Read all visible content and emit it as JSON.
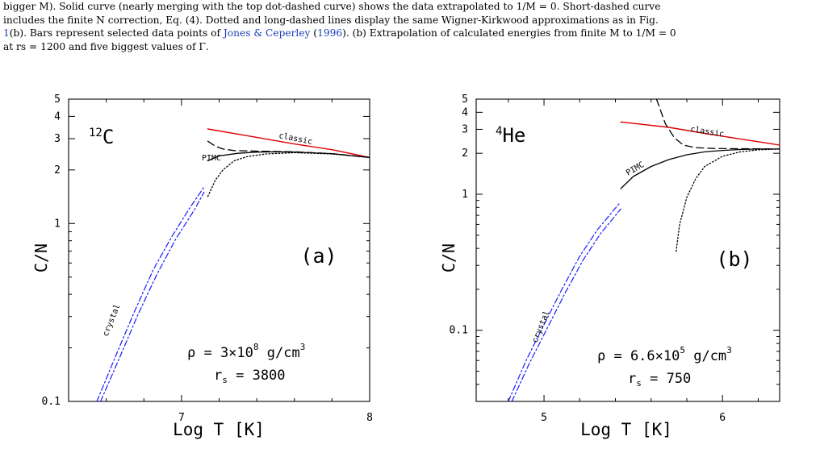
{
  "caption": {
    "line1": "bigger M). Solid curve (nearly merging with the top dot-dashed curve) shows the data extrapolated to 1/M = 0. Short-dashed curve",
    "line2": "includes the finite N correction, Eq. (4). Dotted and long-dashed lines display the same Wigner-Kirkwood approximations as in Fig.",
    "line3_ref": "1",
    "line3_mid": "(b). Bars represent selected data points of ",
    "line3_cite": "Jones & Ceperley",
    "line3_cite_year": "1996",
    "line3_end": ". (b) Extrapolation of calculated energies from finite M to 1/M = 0",
    "line4": "at rs = 1200 and five biggest values of Γ."
  },
  "colors": {
    "classic": "#e00000",
    "crystal": "#1a1aff",
    "black": "#000000"
  },
  "chart_data": [
    {
      "type": "line",
      "panel_label": "(a)",
      "element": "12C",
      "xlabel": "Log T [K]",
      "ylabel": "C/N",
      "xlim": [
        6.4,
        8.0
      ],
      "ylim": [
        0.1,
        5
      ],
      "yscale": "log",
      "xticklabels": [
        "7",
        "8"
      ],
      "yticklabels": [
        "0.1",
        "1",
        "2",
        "3",
        "4",
        "5"
      ],
      "annotations": {
        "density": "ρ = 3×10",
        "density_exp": "8",
        "density_unit": " g/cm",
        "density_unit_exp": "3",
        "rs": "r",
        "rs_sub": "s",
        "rs_value": " = 3800"
      },
      "curve_labels": {
        "classic": "classic",
        "pimc": "PIMC",
        "crystal": "crystal"
      },
      "series": [
        {
          "name": "classic",
          "style": "solid-red",
          "x": [
            7.14,
            7.4,
            7.6,
            7.8,
            8.0
          ],
          "y": [
            3.4,
            3.05,
            2.8,
            2.6,
            2.35
          ]
        },
        {
          "name": "PIMC",
          "style": "solid-black",
          "x": [
            7.14,
            7.2,
            7.3,
            7.4,
            7.5,
            7.6,
            7.8,
            8.0
          ],
          "y": [
            2.25,
            2.4,
            2.48,
            2.52,
            2.53,
            2.52,
            2.47,
            2.35
          ]
        },
        {
          "name": "",
          "style": "long-dashed-black",
          "x": [
            7.14,
            7.18,
            7.22,
            7.28,
            7.4,
            7.6,
            7.8,
            8.0
          ],
          "y": [
            2.9,
            2.72,
            2.62,
            2.57,
            2.55,
            2.53,
            2.47,
            2.35
          ]
        },
        {
          "name": "",
          "style": "dotted-black",
          "x": [
            7.14,
            7.18,
            7.22,
            7.28,
            7.35,
            7.45,
            7.6,
            7.8,
            8.0
          ],
          "y": [
            1.42,
            1.75,
            2.0,
            2.25,
            2.38,
            2.46,
            2.5,
            2.46,
            2.35
          ]
        },
        {
          "name": "crystal",
          "style": "dash-dot-blue",
          "x": [
            6.55,
            6.65,
            6.75,
            6.85,
            6.95,
            7.05,
            7.12
          ],
          "y": [
            0.1,
            0.18,
            0.32,
            0.55,
            0.85,
            1.25,
            1.6
          ]
        },
        {
          "name": "",
          "style": "dash-dot-blue",
          "x": [
            6.57,
            6.67,
            6.77,
            6.87,
            6.97,
            7.07,
            7.12
          ],
          "y": [
            0.1,
            0.175,
            0.31,
            0.52,
            0.82,
            1.2,
            1.5
          ]
        }
      ]
    },
    {
      "type": "line",
      "panel_label": "(b)",
      "element": "4He",
      "xlabel": "Log T [K]",
      "ylabel": "C/N",
      "xlim": [
        4.62,
        6.32
      ],
      "ylim": [
        0.03,
        5
      ],
      "yscale": "log",
      "xticklabels": [
        "5",
        "6"
      ],
      "yticklabels": [
        "0.1",
        "1",
        "2",
        "3",
        "4",
        "5"
      ],
      "annotations": {
        "density": "ρ = 6.6×10",
        "density_exp": "5",
        "density_unit": " g/cm",
        "density_unit_exp": "3",
        "rs": "r",
        "rs_sub": "s",
        "rs_value": " = 750"
      },
      "curve_labels": {
        "classic": "classic",
        "pimc": "PIMC",
        "crystal": "crystal"
      },
      "series": [
        {
          "name": "classic",
          "style": "solid-red",
          "x": [
            5.43,
            5.7,
            5.9,
            6.1,
            6.32
          ],
          "y": [
            3.4,
            3.1,
            2.8,
            2.55,
            2.3
          ]
        },
        {
          "name": "PIMC",
          "style": "solid-black",
          "x": [
            5.43,
            5.5,
            5.6,
            5.7,
            5.8,
            5.9,
            6.0,
            6.1,
            6.2,
            6.32
          ],
          "y": [
            1.1,
            1.35,
            1.6,
            1.8,
            1.95,
            2.05,
            2.1,
            2.13,
            2.15,
            2.15
          ]
        },
        {
          "name": "",
          "style": "long-dashed-black",
          "x": [
            5.63,
            5.68,
            5.73,
            5.78,
            5.85,
            5.95,
            6.1,
            6.32
          ],
          "y": [
            5.0,
            3.3,
            2.6,
            2.3,
            2.2,
            2.17,
            2.16,
            2.15
          ]
        },
        {
          "name": "",
          "style": "dotted-black",
          "x": [
            5.74,
            5.76,
            5.8,
            5.85,
            5.9,
            6.0,
            6.1,
            6.2,
            6.32
          ],
          "y": [
            0.38,
            0.6,
            0.95,
            1.3,
            1.6,
            1.9,
            2.05,
            2.12,
            2.15
          ]
        },
        {
          "name": "crystal",
          "style": "dash-dot-blue",
          "x": [
            4.8,
            4.9,
            5.0,
            5.1,
            5.2,
            5.3,
            5.42
          ],
          "y": [
            0.03,
            0.06,
            0.11,
            0.2,
            0.35,
            0.55,
            0.85
          ]
        },
        {
          "name": "",
          "style": "dash-dot-blue",
          "x": [
            4.82,
            4.92,
            5.02,
            5.12,
            5.22,
            5.32,
            5.43
          ],
          "y": [
            0.03,
            0.058,
            0.105,
            0.19,
            0.33,
            0.52,
            0.78
          ]
        }
      ]
    }
  ]
}
